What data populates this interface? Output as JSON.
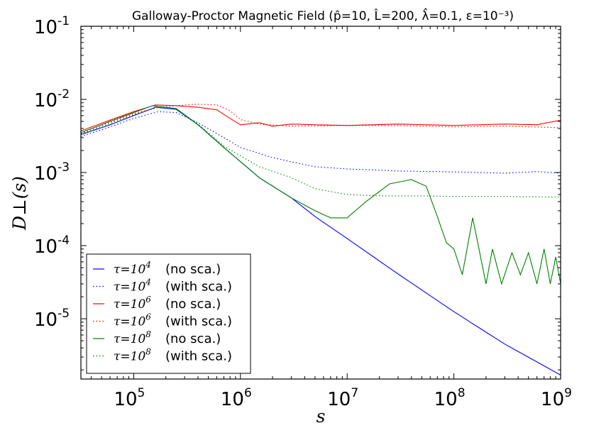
{
  "chart_data": {
    "type": "line",
    "title": "Galloway-Proctor Magnetic Field (p̂=10, L̂=200, λ̂=0.1, ε=10⁻³)",
    "xlabel": "s",
    "ylabel": "D⊥(s)",
    "xscale": "log",
    "yscale": "log",
    "xlim": [
      32000,
      1000000000
    ],
    "ylim": [
      1.5e-06,
      0.1
    ],
    "xtick_values": [
      100000,
      1000000,
      10000000,
      100000000,
      1000000000
    ],
    "xtick_labels": [
      {
        "base": "10",
        "exp": "5"
      },
      {
        "base": "10",
        "exp": "6"
      },
      {
        "base": "10",
        "exp": "7"
      },
      {
        "base": "10",
        "exp": "8"
      },
      {
        "base": "10",
        "exp": "9"
      }
    ],
    "ytick_values": [
      1e-05,
      0.0001,
      0.001,
      0.01,
      0.1
    ],
    "ytick_labels": [
      {
        "base": "10",
        "exp": "-5"
      },
      {
        "base": "10",
        "exp": "-4"
      },
      {
        "base": "10",
        "exp": "-3"
      },
      {
        "base": "10",
        "exp": "-2"
      },
      {
        "base": "10",
        "exp": "-1"
      }
    ],
    "legend_position": "lower-left",
    "series": [
      {
        "name": "τ=10^4 (no sca.)",
        "tau_exp": "4",
        "label": "(no sca.)",
        "color": "#0000ff",
        "style": "solid",
        "x": [
          32000,
          60000,
          100000,
          160000,
          250000,
          400000,
          700000,
          1500000,
          3000000,
          5000000,
          10000000,
          30000000,
          100000000,
          300000000,
          1000000000
        ],
        "y": [
          0.0033,
          0.0045,
          0.006,
          0.0078,
          0.0073,
          0.0045,
          0.0022,
          0.00085,
          0.00045,
          0.00025,
          0.000125,
          4.1e-05,
          1.25e-05,
          4.5e-06,
          1.7e-06
        ]
      },
      {
        "name": "τ=10^4 (with sca.)",
        "tau_exp": "4",
        "label": "(with sca.)",
        "color": "#0000ff",
        "style": "dotted",
        "x": [
          32000,
          60000,
          100000,
          170000,
          250000,
          400000,
          700000,
          1000000,
          2000000,
          3000000,
          5000000,
          10000000,
          30000000,
          100000000,
          300000000,
          600000000,
          1000000000
        ],
        "y": [
          0.0031,
          0.0042,
          0.0055,
          0.0068,
          0.0066,
          0.0048,
          0.003,
          0.0022,
          0.0016,
          0.0014,
          0.0012,
          0.00112,
          0.00105,
          0.00102,
          0.00098,
          0.00103,
          0.00098
        ]
      },
      {
        "name": "τ=10^6 (no sca.)",
        "tau_exp": "6",
        "label": "(no sca.)",
        "color": "#ff0000",
        "style": "solid",
        "x": [
          32000,
          60000,
          100000,
          160000,
          250000,
          400000,
          600000,
          800000,
          1000000,
          1500000,
          2000000,
          3000000,
          5000000,
          10000000,
          30000000,
          100000000,
          300000000,
          600000000,
          1000000000
        ],
        "y": [
          0.0037,
          0.0052,
          0.0068,
          0.0084,
          0.0082,
          0.0078,
          0.0072,
          0.0055,
          0.0045,
          0.0048,
          0.0043,
          0.0046,
          0.0045,
          0.0044,
          0.0046,
          0.0044,
          0.0046,
          0.0045,
          0.0052
        ]
      },
      {
        "name": "τ=10^6 (with sca.)",
        "tau_exp": "6",
        "label": "(with sca.)",
        "color": "#ff0000",
        "style": "dotted",
        "x": [
          32000,
          60000,
          100000,
          170000,
          250000,
          400000,
          600000,
          800000,
          1000000,
          1500000,
          3000000,
          10000000,
          30000000,
          100000000,
          300000000,
          1000000000
        ],
        "y": [
          0.0035,
          0.0049,
          0.0064,
          0.0078,
          0.0082,
          0.0086,
          0.0084,
          0.007,
          0.0053,
          0.0046,
          0.0043,
          0.0044,
          0.0044,
          0.0042,
          0.0043,
          0.0041
        ]
      },
      {
        "name": "τ=10^8 (no sca.)",
        "tau_exp": "8",
        "label": "(no sca.)",
        "color": "#008000",
        "style": "solid",
        "x": [
          32000,
          60000,
          100000,
          150000,
          250000,
          400000,
          700000,
          1500000,
          3000000,
          5000000,
          7000000,
          10000000,
          15000000,
          25000000,
          40000000,
          55000000,
          70000000,
          85000000,
          100000000,
          120000000,
          150000000,
          200000000,
          230000000,
          280000000,
          350000000,
          420000000,
          500000000,
          600000000,
          700000000,
          800000000,
          900000000,
          1000000000
        ],
        "y": [
          0.0035,
          0.005,
          0.0066,
          0.0082,
          0.0075,
          0.0045,
          0.0022,
          0.00085,
          0.00045,
          0.0003,
          0.00024,
          0.00024,
          0.0004,
          0.0007,
          0.0008,
          0.00065,
          0.00025,
          0.00011,
          9e-05,
          4e-05,
          0.00024,
          3e-05,
          9e-05,
          3e-05,
          8e-05,
          4e-05,
          8e-05,
          3e-05,
          9e-05,
          3e-05,
          7e-05,
          3e-05
        ]
      },
      {
        "name": "τ=10^8 (with sca.)",
        "tau_exp": "8",
        "label": "(with sca.)",
        "color": "#008000",
        "style": "dotted",
        "x": [
          32000,
          60000,
          100000,
          170000,
          250000,
          400000,
          700000,
          1500000,
          3000000,
          5000000,
          10000000,
          20000000,
          50000000,
          100000000,
          300000000,
          1000000000
        ],
        "y": [
          0.0034,
          0.0047,
          0.0062,
          0.0078,
          0.0074,
          0.0046,
          0.0023,
          0.0012,
          0.00085,
          0.0006,
          0.0005,
          0.00048,
          0.00048,
          0.00047,
          0.00047,
          0.00046
        ]
      }
    ]
  }
}
